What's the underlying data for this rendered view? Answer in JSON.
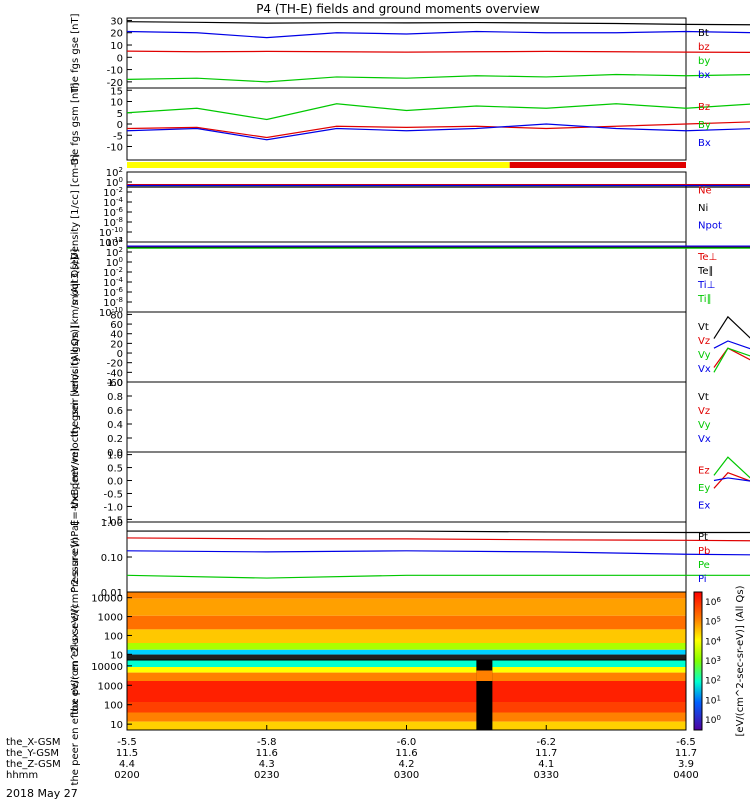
{
  "title": "P4 (TH-E) fields and ground moments overview",
  "date_label": "2018 May 27",
  "x_axis": {
    "row_labels": [
      "the_X-GSM",
      "the_Y-GSM",
      "the_Z-GSM",
      "hhmm"
    ],
    "ticks": [
      {
        "values": [
          "-5.5",
          "11.5",
          "4.4",
          "0200"
        ]
      },
      {
        "values": [
          "-5.8",
          "11.6",
          "4.3",
          "0230"
        ]
      },
      {
        "values": [
          "-6.0",
          "11.6",
          "4.2",
          "0300"
        ]
      },
      {
        "values": [
          "-6.2",
          "11.7",
          "4.1",
          "0330"
        ]
      },
      {
        "values": [
          "-6.5",
          "11.7",
          "3.9",
          "0400"
        ]
      }
    ]
  },
  "colors": {
    "black": "#000000",
    "red": "#e00000",
    "green": "#00c800",
    "blue": "#0000e6",
    "yellow": "#ffff00"
  },
  "mode_bar": {
    "yellow_until_hour": 2.0,
    "segments": [
      "yellow",
      "red"
    ]
  },
  "spectrogram_colorbar": {
    "label": "[eV/(cm^2-sec-sr-eV)] (All Qs)",
    "ticks": [
      "10^6",
      "10^5",
      "10^4",
      "10^3",
      "10^2",
      "10^1",
      "10^0"
    ]
  },
  "chart_data": [
    {
      "type": "line",
      "ylabel": "the fgs gse [nT]",
      "ylim": [
        -25,
        32
      ],
      "yticks": [
        "30",
        "20",
        "10",
        "0",
        "-10",
        "-20"
      ],
      "x": [
        0,
        0.25,
        0.5,
        0.75,
        1.0,
        1.25,
        1.5,
        1.75,
        2.0,
        2.25,
        2.5,
        2.75,
        3.0
      ],
      "series": [
        {
          "name": "Bt",
          "color": "black",
          "values": [
            29,
            28.5,
            27.8,
            28.2,
            28,
            28.3,
            27.9,
            27.5,
            26.8,
            26.5,
            25.5,
            22.5,
            25
          ]
        },
        {
          "name": "bz",
          "color": "red",
          "values": [
            5,
            4.5,
            4.8,
            4.5,
            4.2,
            4.5,
            4.8,
            4.5,
            4.2,
            4,
            3,
            1,
            3
          ]
        },
        {
          "name": "by",
          "color": "green",
          "values": [
            -18,
            -17,
            -20,
            -16,
            -17,
            -15,
            -16,
            -14,
            -15,
            -14,
            -13,
            -13,
            -11
          ]
        },
        {
          "name": "bx",
          "color": "blue",
          "values": [
            21,
            20,
            16,
            20,
            19,
            21,
            20,
            20,
            21,
            20,
            19,
            14,
            18
          ]
        }
      ]
    },
    {
      "type": "line",
      "ylabel": "the fgs gsm [nT]",
      "ylim": [
        -16,
        16
      ],
      "yticks": [
        "15",
        "10",
        "5",
        "0",
        "-5",
        "-10"
      ],
      "x": [
        0,
        0.25,
        0.5,
        0.75,
        1.0,
        1.25,
        1.5,
        1.75,
        2.0,
        2.25,
        2.5,
        2.75,
        3.0
      ],
      "series": [
        {
          "name": "Bz",
          "color": "red",
          "values": [
            -2,
            -1.5,
            -6,
            -1,
            -1.5,
            -1,
            -2,
            -1,
            0,
            1,
            4,
            3,
            -1
          ]
        },
        {
          "name": "By",
          "color": "green",
          "values": [
            5,
            7,
            2,
            9,
            6,
            8,
            7,
            9,
            7,
            9,
            12,
            8,
            7
          ]
        },
        {
          "name": "Bx",
          "color": "blue",
          "values": [
            -3,
            -2,
            -7,
            -2,
            -3,
            -2,
            0,
            -2,
            -3,
            -2,
            -3,
            -13,
            -6
          ]
        }
      ]
    },
    {
      "type": "line",
      "ylabel": "Density [1/cc] [cm-3]",
      "yscale": "log",
      "ylim": [
        -12,
        2
      ],
      "yticks": [
        "10^2",
        "10^0",
        "10^-2",
        "10^-4",
        "10^-6",
        "10^-8",
        "10^-10",
        "10^-12"
      ],
      "x": [
        0,
        3.0
      ],
      "series": [
        {
          "name": "Ne",
          "color": "red",
          "values": [
            0.3,
            0.3
          ]
        },
        {
          "name": "Ni",
          "color": "black",
          "values": [
            0.1,
            0.1
          ]
        },
        {
          "name": "Npot",
          "color": "blue",
          "values": [
            0.2,
            0.2
          ]
        }
      ]
    },
    {
      "type": "line",
      "ylabel": "moqt3 [eV]",
      "yscale": "log",
      "ylim": [
        -10,
        4
      ],
      "yticks": [
        "10^4",
        "10^2",
        "10^0",
        "10^-2",
        "10^-4",
        "10^-6",
        "10^-8",
        "10^-10"
      ],
      "x": [
        0,
        3.0
      ],
      "series": [
        {
          "name": "Te⊥",
          "color": "red",
          "values": [
            1000,
            1000
          ]
        },
        {
          "name": "Te∥",
          "color": "black",
          "values": [
            800,
            800
          ]
        },
        {
          "name": "Ti⊥",
          "color": "blue",
          "values": [
            1500,
            1500
          ]
        },
        {
          "name": "Ti∥",
          "color": "green",
          "values": [
            600,
            600
          ]
        }
      ]
    },
    {
      "type": "line",
      "ylabel": "the peir velocity gsm [km/s (All Qs)]",
      "ylim": [
        -60,
        85
      ],
      "yticks": [
        "80",
        "60",
        "40",
        "20",
        "0",
        "-20",
        "-40",
        "-60"
      ],
      "x": [
        2.1,
        2.15,
        2.25,
        2.4,
        2.55,
        2.7,
        2.75,
        2.85,
        3.0
      ],
      "series": [
        {
          "name": "Vt",
          "color": "black",
          "values": [
            30,
            75,
            20,
            12,
            30,
            65,
            45,
            65,
            25
          ]
        },
        {
          "name": "Vz",
          "color": "red",
          "values": [
            -30,
            10,
            -20,
            0,
            15,
            30,
            40,
            10,
            -10
          ]
        },
        {
          "name": "Vy",
          "color": "green",
          "values": [
            -40,
            10,
            -10,
            -5,
            5,
            0,
            10,
            -5,
            -30
          ]
        },
        {
          "name": "Vx",
          "color": "blue",
          "values": [
            10,
            25,
            5,
            10,
            20,
            40,
            15,
            -30,
            -20
          ]
        }
      ]
    },
    {
      "type": "line",
      "ylabel": "the peer velocity gsm [km/s (All Qs)]",
      "ylim": [
        0,
        1.0
      ],
      "yticks": [
        "1.0",
        "0.8",
        "0.6",
        "0.4",
        "0.2",
        "0.0"
      ],
      "x": [],
      "series": [
        {
          "name": "Vt",
          "color": "black",
          "values": []
        },
        {
          "name": "Vz",
          "color": "red",
          "values": []
        },
        {
          "name": "Vy",
          "color": "green",
          "values": []
        },
        {
          "name": "Vx",
          "color": "blue",
          "values": []
        }
      ]
    },
    {
      "type": "line",
      "ylabel": "E=-VxB [mV/m]",
      "ylim": [
        -1.6,
        1.1
      ],
      "yticks": [
        "1.0",
        "0.5",
        "0.0",
        "-0.5",
        "-1.0",
        "-1.5"
      ],
      "x": [
        2.1,
        2.15,
        2.25,
        2.4,
        2.55,
        2.7,
        2.8,
        2.9,
        3.0
      ],
      "series": [
        {
          "name": "Ez",
          "color": "red",
          "values": [
            -0.3,
            0.3,
            -0.1,
            0.0,
            0.3,
            0.7,
            0.6,
            -0.8,
            -0.4
          ]
        },
        {
          "name": "Ey",
          "color": "green",
          "values": [
            0.2,
            0.9,
            -0.1,
            -0.2,
            -0.1,
            -0.2,
            -0.1,
            0.1,
            0.1
          ]
        },
        {
          "name": "Ex",
          "color": "blue",
          "values": [
            0.0,
            0.1,
            -0.05,
            -0.2,
            -0.1,
            -0.15,
            -0.2,
            -0.2,
            -0.1
          ]
        }
      ]
    },
    {
      "type": "line",
      "ylabel": "Pressure [nPa]",
      "yscale": "log",
      "ylim": [
        0.01,
        1.0
      ],
      "yticks": [
        "1.00",
        "0.10",
        "0.01"
      ],
      "x": [
        0,
        0.5,
        1.0,
        1.5,
        2.0,
        2.5,
        2.75,
        3.0
      ],
      "series": [
        {
          "name": "Pt",
          "color": "black",
          "values": [
            0.55,
            0.55,
            0.55,
            0.52,
            0.5,
            0.5,
            0.3,
            0.38
          ]
        },
        {
          "name": "Pb",
          "color": "red",
          "values": [
            0.35,
            0.33,
            0.33,
            0.31,
            0.3,
            0.28,
            0.16,
            0.25
          ]
        },
        {
          "name": "Pe",
          "color": "green",
          "values": [
            0.03,
            0.025,
            0.03,
            0.03,
            0.03,
            0.03,
            0.04,
            0.035
          ]
        },
        {
          "name": "Pi",
          "color": "blue",
          "values": [
            0.15,
            0.14,
            0.15,
            0.14,
            0.12,
            0.11,
            0.09,
            0.08
          ]
        }
      ]
    },
    {
      "type": "heatmap",
      "ylabel": "the peir en eflux eV/(cm^2-s-sr-eV)",
      "yscale": "log",
      "ylim": [
        5,
        20000
      ],
      "yticks": [
        "10000",
        "1000",
        "100",
        "10"
      ]
    },
    {
      "type": "heatmap",
      "ylabel": "the peer en eflux eV/(cm^2-s-sr-eV)",
      "yscale": "log",
      "ylim": [
        5,
        20000
      ],
      "yticks": [
        "10000",
        "1000",
        "100",
        "10"
      ]
    }
  ]
}
